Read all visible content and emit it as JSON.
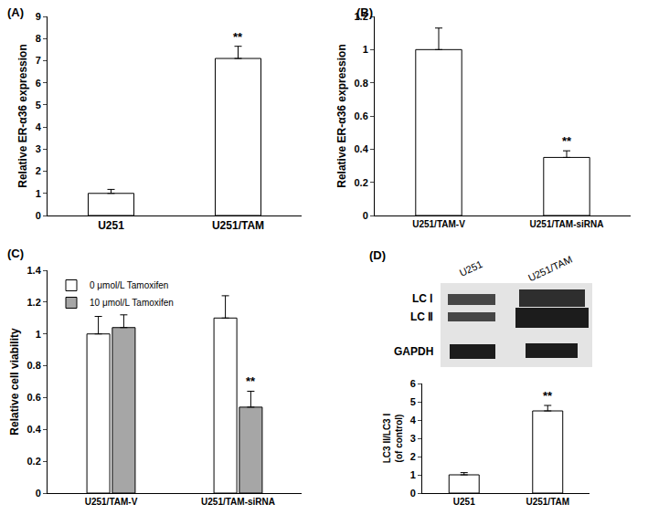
{
  "chart_data": [
    {
      "type": "bar",
      "title": "(A)",
      "y_label": [
        "Relative ER-α36 expression"
      ],
      "categories": [
        "U251",
        "U251/TAM"
      ],
      "values": [
        1.0,
        7.1
      ],
      "errors": [
        0.18,
        0.55
      ],
      "color": "#ffffff",
      "ylim": [
        0,
        9
      ],
      "yticks": [
        0,
        1,
        2,
        3,
        4,
        5,
        6,
        7,
        8,
        9
      ],
      "grid": false,
      "annotations": [
        {
          "category": "U251/TAM",
          "text": "**"
        }
      ]
    },
    {
      "type": "bar",
      "title": "(B)",
      "y_label": [
        "Relative ER-α36 expression"
      ],
      "categories": [
        "U251/TAM-V",
        "U251/TAM-siRNA"
      ],
      "values": [
        1.0,
        0.35
      ],
      "errors": [
        0.13,
        0.04
      ],
      "color": "#ffffff",
      "ylim": [
        0,
        1.2
      ],
      "yticks": [
        0,
        0.2,
        0.4,
        0.6,
        0.8,
        1,
        1.2
      ],
      "grid": false,
      "annotations": [
        {
          "category": "U251/TAM-siRNA",
          "text": "**"
        }
      ]
    },
    {
      "type": "bar",
      "title": "(C)",
      "y_label": [
        "Relative cell viability"
      ],
      "categories": [
        "U251/TAM-V",
        "U251/TAM-siRNA"
      ],
      "series": [
        {
          "name": "0 μmol/L Tamoxifen",
          "color": "#ffffff",
          "values": [
            1.0,
            1.1
          ],
          "errors": [
            0.11,
            0.14
          ]
        },
        {
          "name": "10 μmol/L Tamoxifen",
          "color": "#a6a6a6",
          "values": [
            1.04,
            0.54
          ],
          "errors": [
            0.08,
            0.1
          ]
        }
      ],
      "ylim": [
        0,
        1.4
      ],
      "yticks": [
        0,
        0.2,
        0.4,
        0.6,
        0.8,
        1,
        1.2,
        1.4
      ],
      "grid": false,
      "legend": "upper left",
      "annotations": [
        {
          "category": "U251/TAM-siRNA",
          "series": "10 μmol/L Tamoxifen",
          "text": "**"
        }
      ]
    },
    {
      "type": "bar",
      "title": "(D)",
      "y_label": [
        "LC3 II/LC3 I",
        "(of control)"
      ],
      "categories": [
        "U251",
        "U251/TAM"
      ],
      "values": [
        1.0,
        4.5
      ],
      "errors": [
        0.12,
        0.3
      ],
      "color": "#ffffff",
      "ylim": [
        0,
        6
      ],
      "yticks": [
        0,
        1,
        2,
        3,
        4,
        5,
        6
      ],
      "grid": false,
      "annotations": [
        {
          "category": "U251/TAM",
          "text": "**"
        }
      ]
    }
  ],
  "blot": {
    "lane_labels": [
      "U251",
      "U251/TAM"
    ],
    "band_labels": [
      "LC Ⅰ",
      "LC Ⅱ",
      "GAPDH"
    ]
  }
}
